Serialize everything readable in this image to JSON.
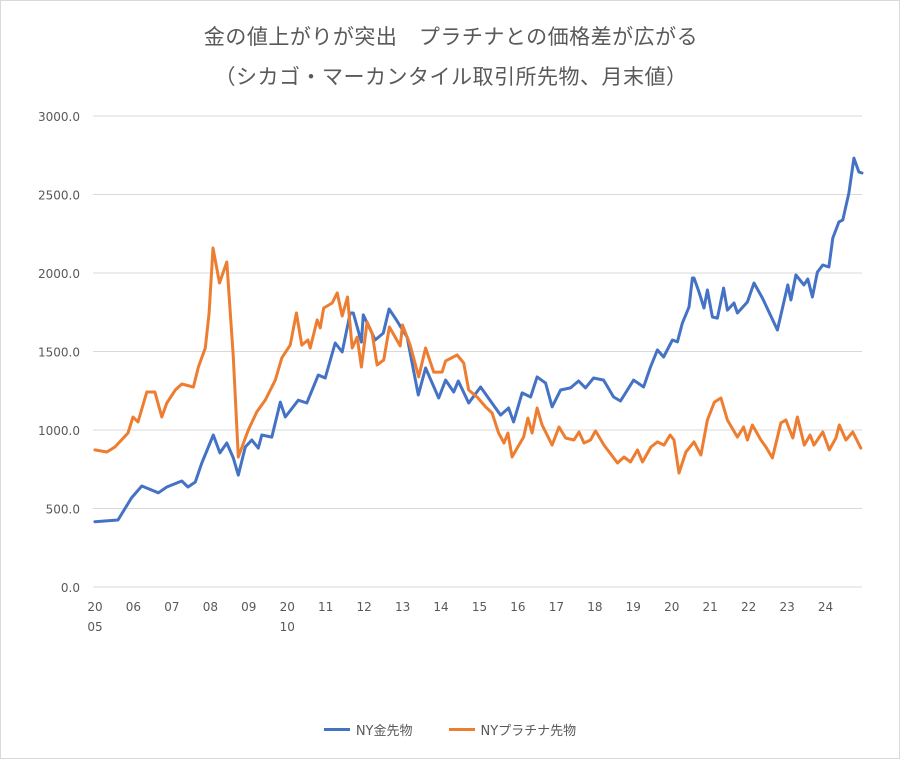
{
  "chart_data": {
    "type": "line",
    "title": "金の値上がりが突出　プラチナとの価格差が広がる",
    "subtitle": "（シカゴ・マーカンタイル取引所先物、月末値）",
    "xlabel": "",
    "ylabel": "",
    "xlim": [
      2005.0,
      2025.0
    ],
    "ylim": [
      0,
      3000
    ],
    "grid": true,
    "legend_position": "bottom",
    "y_ticks": [
      "0.0",
      "500.0",
      "1000.0",
      "1500.0",
      "2000.0",
      "2500.0",
      "3000.0"
    ],
    "y_tick_values": [
      0,
      500,
      1000,
      1500,
      2000,
      2500,
      3000
    ],
    "x_ticks": [
      {
        "year": 2005,
        "line1": "20",
        "line2": "05"
      },
      {
        "year": 2006,
        "line1": "06"
      },
      {
        "year": 2007,
        "line1": "07"
      },
      {
        "year": 2008,
        "line1": "08"
      },
      {
        "year": 2009,
        "line1": "09"
      },
      {
        "year": 2010,
        "line1": "20",
        "line2": "10"
      },
      {
        "year": 2011,
        "line1": "11"
      },
      {
        "year": 2012,
        "line1": "12"
      },
      {
        "year": 2013,
        "line1": "13"
      },
      {
        "year": 2014,
        "line1": "14"
      },
      {
        "year": 2015,
        "line1": "15"
      },
      {
        "year": 2016,
        "line1": "16"
      },
      {
        "year": 2017,
        "line1": "17"
      },
      {
        "year": 2018,
        "line1": "18"
      },
      {
        "year": 2019,
        "line1": "19"
      },
      {
        "year": 2020,
        "line1": "20"
      },
      {
        "year": 2021,
        "line1": "21"
      },
      {
        "year": 2022,
        "line1": "22"
      },
      {
        "year": 2023,
        "line1": "23"
      },
      {
        "year": 2024,
        "line1": "24"
      }
    ],
    "series": [
      {
        "name": "NY金先物",
        "color": "#4472C4",
        "x": [
          2005.05,
          2005.65,
          2006.0,
          2006.27,
          2006.7,
          2006.92,
          2007.31,
          2007.47,
          2007.66,
          2007.83,
          2008.13,
          2008.3,
          2008.48,
          2008.65,
          2008.78,
          2008.96,
          2009.13,
          2009.3,
          2009.39,
          2009.65,
          2009.87,
          2010.0,
          2010.34,
          2010.56,
          2010.86,
          2011.04,
          2011.3,
          2011.48,
          2011.69,
          2011.77,
          2011.98,
          2012.03,
          2012.34,
          2012.55,
          2012.7,
          2012.86,
          2013.17,
          2013.46,
          2013.65,
          2013.99,
          2014.17,
          2014.38,
          2014.5,
          2014.77,
          2015.08,
          2015.6,
          2015.81,
          2015.94,
          2016.16,
          2016.38,
          2016.55,
          2016.77,
          2016.94,
          2017.16,
          2017.42,
          2017.63,
          2017.81,
          2018.02,
          2018.28,
          2018.54,
          2018.72,
          2019.06,
          2019.32,
          2019.5,
          2019.68,
          2019.84,
          2020.07,
          2020.2,
          2020.33,
          2020.5,
          2020.59,
          2020.63,
          2020.76,
          2020.89,
          2020.98,
          2021.11,
          2021.24,
          2021.4,
          2021.5,
          2021.67,
          2021.76,
          2022.02,
          2022.19,
          2022.41,
          2022.8,
          2023.07,
          2023.15,
          2023.28,
          2023.49,
          2023.59,
          2023.71,
          2023.84,
          2023.98,
          2024.14,
          2024.24,
          2024.4,
          2024.5,
          2024.66,
          2024.79,
          2024.92,
          2025.0
        ],
        "values": [
          416,
          427,
          567,
          643,
          600,
          637,
          675,
          637,
          669,
          790,
          968,
          854,
          917,
          822,
          713,
          892,
          936,
          885,
          968,
          955,
          1178,
          1083,
          1190,
          1172,
          1350,
          1331,
          1554,
          1497,
          1745,
          1745,
          1560,
          1733,
          1573,
          1617,
          1771,
          1713,
          1592,
          1223,
          1395,
          1204,
          1318,
          1242,
          1312,
          1172,
          1274,
          1095,
          1140,
          1051,
          1236,
          1210,
          1338,
          1299,
          1147,
          1255,
          1268,
          1312,
          1268,
          1331,
          1318,
          1210,
          1185,
          1318,
          1274,
          1401,
          1510,
          1465,
          1573,
          1561,
          1682,
          1783,
          1968,
          1968,
          1879,
          1777,
          1892,
          1720,
          1713,
          1904,
          1764,
          1809,
          1745,
          1815,
          1936,
          1841,
          1637,
          1924,
          1828,
          1987,
          1924,
          1962,
          1847,
          2006,
          2051,
          2038,
          2223,
          2325,
          2338,
          2510,
          2732,
          2643,
          2637
        ]
      },
      {
        "name": "NYプラチナ先物",
        "color": "#ED7D31",
        "x": [
          2005.05,
          2005.36,
          2005.57,
          2005.91,
          2006.04,
          2006.17,
          2006.4,
          2006.61,
          2006.79,
          2006.92,
          2007.14,
          2007.31,
          2007.61,
          2007.74,
          2007.92,
          2008.02,
          2008.12,
          2008.29,
          2008.48,
          2008.65,
          2008.78,
          2009.04,
          2009.26,
          2009.48,
          2009.74,
          2009.91,
          2010.13,
          2010.29,
          2010.43,
          2010.59,
          2010.65,
          2010.83,
          2010.91,
          2011.0,
          2011.22,
          2011.35,
          2011.48,
          2011.62,
          2011.74,
          2011.87,
          2011.98,
          2012.13,
          2012.26,
          2012.39,
          2012.56,
          2012.71,
          2012.86,
          2012.99,
          2013.05,
          2013.25,
          2013.47,
          2013.65,
          2013.86,
          2014.08,
          2014.17,
          2014.47,
          2014.64,
          2014.77,
          2014.99,
          2015.21,
          2015.38,
          2015.55,
          2015.69,
          2015.79,
          2015.9,
          2016.03,
          2016.2,
          2016.31,
          2016.42,
          2016.55,
          2016.68,
          2016.94,
          2017.12,
          2017.29,
          2017.51,
          2017.64,
          2017.77,
          2017.94,
          2018.07,
          2018.29,
          2018.64,
          2018.81,
          2018.98,
          2019.16,
          2019.29,
          2019.51,
          2019.68,
          2019.85,
          2020.01,
          2020.11,
          2020.24,
          2020.42,
          2020.63,
          2020.81,
          2020.98,
          2021.16,
          2021.33,
          2021.5,
          2021.76,
          2021.92,
          2022.02,
          2022.15,
          2022.37,
          2022.5,
          2022.67,
          2022.89,
          2023.02,
          2023.2,
          2023.32,
          2023.5,
          2023.65,
          2023.75,
          2023.98,
          2024.15,
          2024.32,
          2024.41,
          2024.58,
          2024.76,
          2024.97
        ],
        "values": [
          873,
          860,
          892,
          981,
          1083,
          1051,
          1242,
          1242,
          1083,
          1172,
          1255,
          1293,
          1274,
          1401,
          1522,
          1745,
          2159,
          1936,
          2070,
          1465,
          828,
          1000,
          1115,
          1191,
          1318,
          1459,
          1541,
          1745,
          1541,
          1573,
          1522,
          1701,
          1650,
          1777,
          1809,
          1873,
          1726,
          1847,
          1522,
          1592,
          1401,
          1688,
          1617,
          1414,
          1446,
          1656,
          1592,
          1535,
          1669,
          1541,
          1338,
          1522,
          1369,
          1369,
          1440,
          1478,
          1427,
          1255,
          1210,
          1147,
          1108,
          981,
          917,
          981,
          828,
          885,
          955,
          1076,
          981,
          1140,
          1032,
          904,
          1019,
          949,
          936,
          987,
          917,
          936,
          994,
          904,
          790,
          828,
          796,
          873,
          796,
          892,
          924,
          904,
          968,
          936,
          726,
          860,
          924,
          841,
          1064,
          1178,
          1204,
          1064,
          955,
          1019,
          936,
          1032,
          936,
          892,
          822,
          1045,
          1064,
          949,
          1083,
          904,
          968,
          904,
          987,
          873,
          949,
          1032,
          936,
          987,
          885
        ]
      }
    ]
  }
}
